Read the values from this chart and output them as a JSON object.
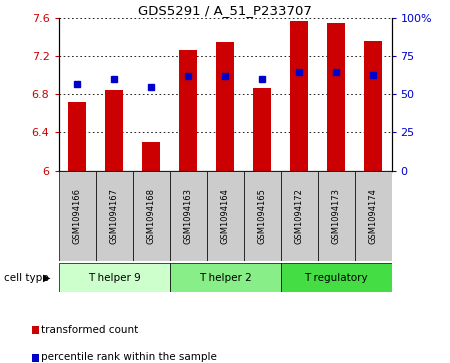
{
  "title": "GDS5291 / A_51_P233707",
  "samples": [
    "GSM1094166",
    "GSM1094167",
    "GSM1094168",
    "GSM1094163",
    "GSM1094164",
    "GSM1094165",
    "GSM1094172",
    "GSM1094173",
    "GSM1094174"
  ],
  "transformed_counts": [
    6.72,
    6.85,
    6.3,
    7.27,
    7.35,
    6.87,
    7.57,
    7.55,
    7.36
  ],
  "percentile_ranks_pct": [
    57,
    60,
    55,
    62,
    62,
    60,
    65,
    65,
    63
  ],
  "ylim_left": [
    6.0,
    7.6
  ],
  "ylim_right": [
    0,
    100
  ],
  "yticks_left": [
    6.0,
    6.4,
    6.8,
    7.2,
    7.6
  ],
  "yticks_right": [
    0,
    25,
    50,
    75,
    100
  ],
  "ytick_labels_right": [
    "0",
    "25",
    "50",
    "75",
    "100%"
  ],
  "cell_types": [
    {
      "label": "T helper 9",
      "samples": [
        0,
        1,
        2
      ],
      "color": "#ccffcc"
    },
    {
      "label": "T helper 2",
      "samples": [
        3,
        4,
        5
      ],
      "color": "#88ee88"
    },
    {
      "label": "T regulatory",
      "samples": [
        6,
        7,
        8
      ],
      "color": "#44dd44"
    }
  ],
  "bar_color": "#cc0000",
  "dot_color": "#0000cc",
  "bar_width": 0.5,
  "label_color_left": "#cc0000",
  "label_color_right": "#0000cc",
  "cell_type_label": "cell type",
  "legend_items": [
    {
      "color": "#cc0000",
      "label": "transformed count"
    },
    {
      "color": "#0000cc",
      "label": "percentile rank within the sample"
    }
  ]
}
